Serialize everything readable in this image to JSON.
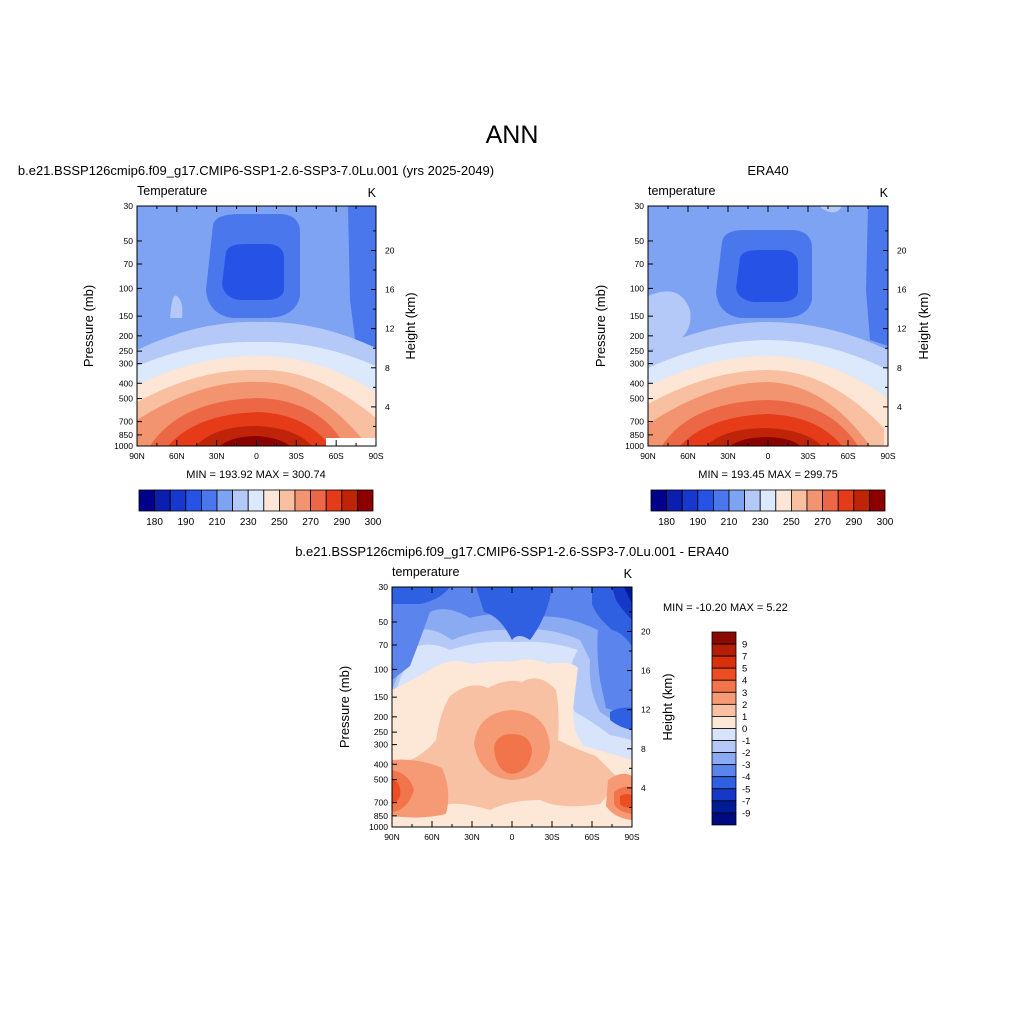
{
  "figure": {
    "title": "ANN"
  },
  "ticks": {
    "lat": [
      "90N",
      "60N",
      "30N",
      "0",
      "30S",
      "60S",
      "90S"
    ],
    "pressure": [
      "30",
      "50",
      "70",
      "100",
      "150",
      "200",
      "250",
      "300",
      "400",
      "500",
      "700",
      "850",
      "1000"
    ],
    "height": [
      "20",
      "16",
      "12",
      "8",
      "4"
    ]
  },
  "chart_data": [
    {
      "type": "heatmap",
      "title": "b.e21.BSSP126cmip6.f09_g17.CMIP6-SSP1-2.6-SSP3-7.0Lu.001 (yrs 2025-2049)",
      "left_label": "Temperature",
      "right_label": "K",
      "xlabel": "",
      "ylabel": "Pressure (mb)",
      "y2label": "Height (km)",
      "stats": "MIN = 193.92  MAX = 300.74",
      "min": 193.92,
      "max": 300.74,
      "x": [
        90,
        60,
        30,
        0,
        -30,
        -60,
        -90
      ],
      "y": [
        30,
        50,
        70,
        100,
        150,
        200,
        250,
        300,
        400,
        500,
        700,
        850,
        1000
      ],
      "y_scale": "log",
      "colorbar": {
        "orientation": "horizontal",
        "labels": [
          "180",
          "190",
          "210",
          "230",
          "250",
          "270",
          "290",
          "300"
        ],
        "levels": [
          180,
          185,
          190,
          200,
          210,
          220,
          230,
          240,
          250,
          260,
          270,
          280,
          290,
          295,
          300
        ],
        "colors": [
          "#00008b",
          "#0a1fb0",
          "#1738cf",
          "#2653e6",
          "#4a78ec",
          "#7ea3f2",
          "#b4c9f7",
          "#dce8fb",
          "#fde6d6",
          "#f8bfa1",
          "#f39471",
          "#ec6745",
          "#e53b18",
          "#c02408",
          "#8b0000"
        ]
      }
    },
    {
      "type": "heatmap",
      "title": "ERA40",
      "left_label": "temperature",
      "right_label": "K",
      "xlabel": "",
      "ylabel": "Pressure (mb)",
      "y2label": "Height (km)",
      "stats": "MIN = 193.45  MAX = 299.75",
      "min": 193.45,
      "max": 299.75,
      "x": [
        90,
        60,
        30,
        0,
        -30,
        -60,
        -90
      ],
      "y": [
        30,
        50,
        70,
        100,
        150,
        200,
        250,
        300,
        400,
        500,
        700,
        850,
        1000
      ],
      "y_scale": "log",
      "colorbar": {
        "orientation": "horizontal",
        "labels": [
          "180",
          "190",
          "210",
          "230",
          "250",
          "270",
          "290",
          "300"
        ],
        "levels": [
          180,
          185,
          190,
          200,
          210,
          220,
          230,
          240,
          250,
          260,
          270,
          280,
          290,
          295,
          300
        ],
        "colors": [
          "#00008b",
          "#0a1fb0",
          "#1738cf",
          "#2653e6",
          "#4a78ec",
          "#7ea3f2",
          "#b4c9f7",
          "#dce8fb",
          "#fde6d6",
          "#f8bfa1",
          "#f39471",
          "#ec6745",
          "#e53b18",
          "#c02408",
          "#8b0000"
        ]
      }
    },
    {
      "type": "heatmap",
      "title": "b.e21.BSSP126cmip6.f09_g17.CMIP6-SSP1-2.6-SSP3-7.0Lu.001 - ERA40",
      "left_label": "temperature",
      "right_label": "K",
      "xlabel": "",
      "ylabel": "Pressure (mb)",
      "y2label": "Height (km)",
      "stats": "MIN = -10.20  MAX =   5.22",
      "min": -10.2,
      "max": 5.22,
      "x": [
        90,
        60,
        30,
        0,
        -30,
        -60,
        -90
      ],
      "y": [
        30,
        50,
        70,
        100,
        150,
        200,
        250,
        300,
        400,
        500,
        700,
        850,
        1000
      ],
      "y_scale": "log",
      "colorbar": {
        "orientation": "vertical",
        "labels": [
          "9",
          "7",
          "5",
          "4",
          "3",
          "2",
          "1",
          "0",
          "-1",
          "-2",
          "-3",
          "-4",
          "-5",
          "-7",
          "-9"
        ],
        "colors_top_to_bottom": [
          "#8b0a00",
          "#b51e06",
          "#d8300c",
          "#ec4d23",
          "#f2744a",
          "#f59a74",
          "#f8c1a3",
          "#fde8d8",
          "#d7e4fb",
          "#b4c9f7",
          "#8aabf2",
          "#5b84ec",
          "#3060e2",
          "#1538c6",
          "#001b96",
          "#000a80"
        ]
      }
    }
  ]
}
